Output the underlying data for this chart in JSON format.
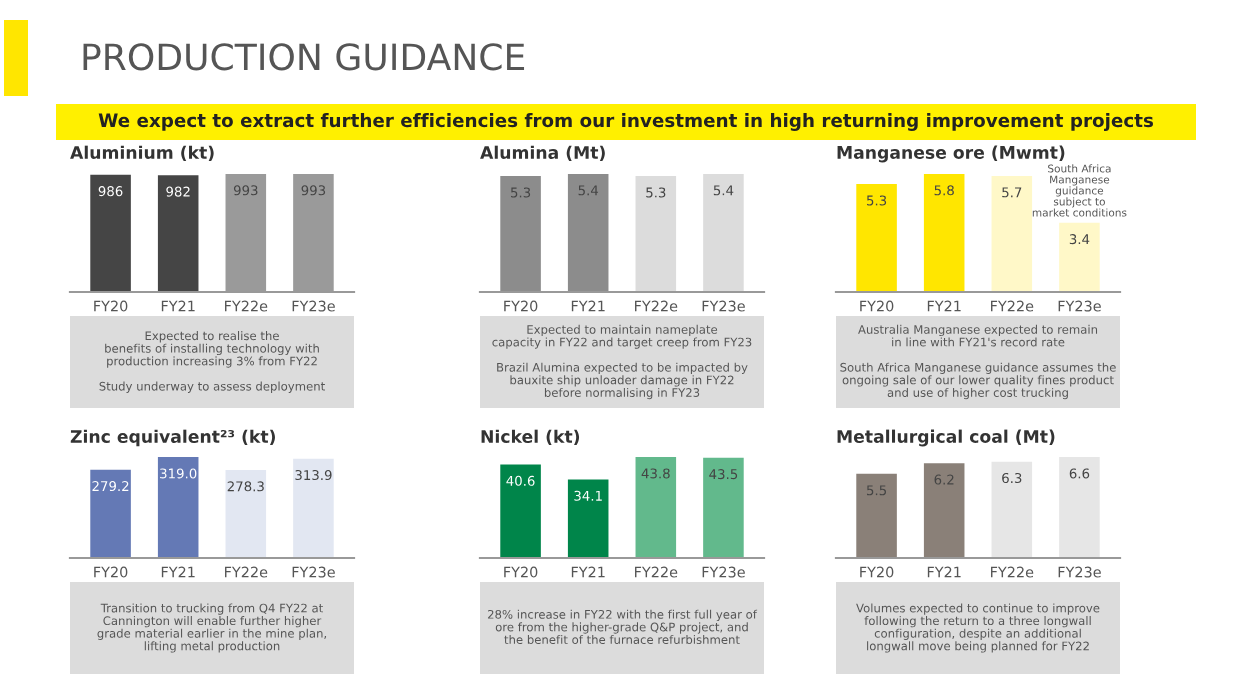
{
  "chart_data": [
    {
      "type": "other",
      "title": "PRODUCTION GUIDANCE",
      "subtitle": "We expect to extract further efficiencies from our investment in high returning improvement projects"
    },
    {
      "type": "bar",
      "title": "Aluminium (kt)",
      "categories": [
        "FY20",
        "FY21",
        "FY22e",
        "FY23e"
      ],
      "values": [
        986,
        982,
        993,
        993
      ],
      "colors": [
        "#454545",
        "#454545",
        "#9a9a9a",
        "#9a9a9a"
      ],
      "tick_labels": "x",
      "data_labels": true,
      "annotations": [
        "Expected to realise the\nbenefits of installing technology with\nproduction increasing 3% from FY22",
        "Study underway to assess deployment"
      ]
    },
    {
      "type": "bar",
      "title": "Alumina (Mt)",
      "categories": [
        "FY20",
        "FY21",
        "FY22e",
        "FY23e"
      ],
      "values": [
        5.3,
        5.4,
        5.3,
        5.4
      ],
      "colors": [
        "#8c8c8c",
        "#8c8c8c",
        "#dcdcdc",
        "#dcdcdc"
      ],
      "tick_labels": "x",
      "data_labels": true,
      "annotations": [
        "Expected to maintain nameplate\ncapacity in FY22 and target creep from FY23",
        "Brazil Alumina expected to be impacted by\nbauxite ship unloader damage in FY22\nbefore normalising in FY23"
      ]
    },
    {
      "type": "bar",
      "title": "Manganese ore (Mwmt)",
      "categories": [
        "FY20",
        "FY21",
        "FY22e",
        "FY23e"
      ],
      "values": [
        5.3,
        5.8,
        5.7,
        3.4
      ],
      "colors": [
        "#ffe600",
        "#ffe600",
        "#fff8c8",
        "#fff8c8"
      ],
      "tick_labels": "x",
      "data_labels": true,
      "annotations": [
        {
          "text": "South Africa\nManganese\nguidance\nsubject to\nmarket conditions",
          "x": "FY23e",
          "y": 3.4
        },
        "Australia Manganese expected to remain\nin line with FY21's record rate",
        "South Africa Manganese guidance assumes the\nongoing sale of our lower quality fines product\nand use of higher cost trucking"
      ]
    },
    {
      "type": "bar",
      "title": "Zinc equivalent²³ (kt)",
      "categories": [
        "FY20",
        "FY21",
        "FY22e",
        "FY23e"
      ],
      "values": [
        279.2,
        319.0,
        278.3,
        313.9
      ],
      "value_labels": [
        "279.2",
        "319.0",
        "278.3",
        "313.9"
      ],
      "colors": [
        "#6479b5",
        "#6479b5",
        "#e2e7f2",
        "#e2e7f2"
      ],
      "tick_labels": "x",
      "annotations": [
        "Transition to trucking from Q4 FY22 at\nCannington will enable further higher\ngrade material earlier in the mine plan,\nlifting metal production"
      ]
    },
    {
      "type": "bar",
      "title": "Nickel (kt)",
      "categories": [
        "FY20",
        "FY21",
        "FY22e",
        "FY23e"
      ],
      "values": [
        40.6,
        34.1,
        43.8,
        43.5
      ],
      "colors": [
        "#00854a",
        "#00854a",
        "#62b98c",
        "#62b98c"
      ],
      "tick_labels": "x",
      "data_labels": true,
      "annotations": [
        "28% increase in FY22 with the first full year of\nore from the higher-grade Q&P project, and\nthe benefit of the furnace refurbishment"
      ]
    },
    {
      "type": "bar",
      "title": "Metallurgical coal (Mt)",
      "categories": [
        "FY20",
        "FY21",
        "FY22e",
        "FY23e"
      ],
      "values": [
        5.5,
        6.2,
        6.3,
        6.6
      ],
      "colors": [
        "#8a8078",
        "#8a8078",
        "#e6e6e6",
        "#e6e6e6"
      ],
      "tick_labels": "x",
      "data_labels": true,
      "annotations": [
        "Volumes expected to continue to improve\nfollowing the return to a three longwall\nconfiguration, despite an additional\nlongwall move being planned for FY22"
      ]
    }
  ]
}
